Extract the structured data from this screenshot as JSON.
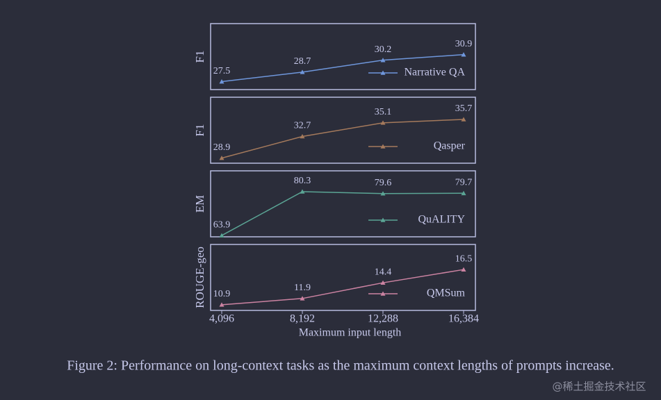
{
  "chart_data": [
    {
      "type": "line",
      "ylabel": "F1",
      "x": [
        4096,
        8192,
        12288,
        16384
      ],
      "xlim": [
        3531,
        16984
      ],
      "ylim": [
        26.5,
        34.8
      ],
      "legend": "lower right",
      "series": [
        {
          "name": "Narrative QA",
          "color": "#6f97dc",
          "values": [
            27.5,
            28.7,
            30.2,
            30.9
          ]
        }
      ]
    },
    {
      "type": "line",
      "ylabel": "F1",
      "x": [
        4096,
        8192,
        12288,
        16384
      ],
      "xlim": [
        3531,
        16984
      ],
      "ylim": [
        28,
        39.6
      ],
      "legend": "lower right",
      "series": [
        {
          "name": "Qasper",
          "color": "#a57a5c",
          "values": [
            28.9,
            32.7,
            35.1,
            35.7
          ]
        }
      ]
    },
    {
      "type": "line",
      "ylabel": "EM",
      "x": [
        4096,
        8192,
        12288,
        16384
      ],
      "xlim": [
        3531,
        16984
      ],
      "ylim": [
        63.4,
        88.1
      ],
      "legend": "lower right",
      "series": [
        {
          "name": "QuALITY",
          "color": "#5ba595",
          "values": [
            63.9,
            80.3,
            79.6,
            79.7
          ]
        }
      ]
    },
    {
      "type": "line",
      "ylabel": "ROUGE-geo",
      "x": [
        4096,
        8192,
        12288,
        16384
      ],
      "xlim": [
        3531,
        16984
      ],
      "ylim": [
        10,
        20.5
      ],
      "legend": "lower right",
      "xlabel": "Maximum input length",
      "xticks": [
        {
          "value": 4096,
          "label": "4,096"
        },
        {
          "value": 8192,
          "label": "8,192"
        },
        {
          "value": 12288,
          "label": "12,288"
        },
        {
          "value": 16384,
          "label": "16,384"
        }
      ],
      "series": [
        {
          "name": "QMSum",
          "color": "#cc83a2",
          "values": [
            10.9,
            11.9,
            14.4,
            16.5
          ]
        }
      ]
    }
  ],
  "caption": "Figure 2: Performance on long-context tasks as the maximum context lengths of prompts increase.",
  "watermark": "@稀土掘金技术社区"
}
